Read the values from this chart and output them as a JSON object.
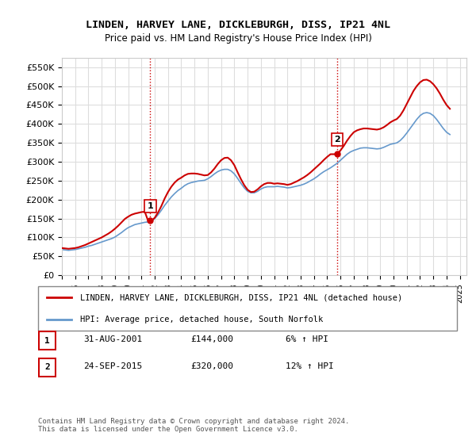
{
  "title": "LINDEN, HARVEY LANE, DICKLEBURGH, DISS, IP21 4NL",
  "subtitle": "Price paid vs. HM Land Registry's House Price Index (HPI)",
  "ylim": [
    0,
    575000
  ],
  "yticks": [
    0,
    50000,
    100000,
    150000,
    200000,
    250000,
    300000,
    350000,
    400000,
    450000,
    500000,
    550000
  ],
  "xlim_start": 1995.0,
  "xlim_end": 2025.5,
  "background_color": "#ffffff",
  "grid_color": "#dddddd",
  "line1_color": "#cc0000",
  "line2_color": "#6699cc",
  "transaction1_x": 2001.667,
  "transaction1_y": 144000,
  "transaction1_label": "1",
  "transaction2_x": 2015.75,
  "transaction2_y": 320000,
  "transaction2_label": "2",
  "vline_color": "#cc0000",
  "vline_style": ":",
  "legend_line1": "LINDEN, HARVEY LANE, DICKLEBURGH, DISS, IP21 4NL (detached house)",
  "legend_line2": "HPI: Average price, detached house, South Norfolk",
  "table_rows": [
    {
      "num": "1",
      "date": "31-AUG-2001",
      "price": "£144,000",
      "hpi": "6% ↑ HPI"
    },
    {
      "num": "2",
      "date": "24-SEP-2015",
      "price": "£320,000",
      "hpi": "12% ↑ HPI"
    }
  ],
  "footnote": "Contains HM Land Registry data © Crown copyright and database right 2024.\nThis data is licensed under the Open Government Licence v3.0.",
  "hpi_data_x": [
    1995.0,
    1995.25,
    1995.5,
    1995.75,
    1996.0,
    1996.25,
    1996.5,
    1996.75,
    1997.0,
    1997.25,
    1997.5,
    1997.75,
    1998.0,
    1998.25,
    1998.5,
    1998.75,
    1999.0,
    1999.25,
    1999.5,
    1999.75,
    2000.0,
    2000.25,
    2000.5,
    2000.75,
    2001.0,
    2001.25,
    2001.5,
    2001.75,
    2002.0,
    2002.25,
    2002.5,
    2002.75,
    2003.0,
    2003.25,
    2003.5,
    2003.75,
    2004.0,
    2004.25,
    2004.5,
    2004.75,
    2005.0,
    2005.25,
    2005.5,
    2005.75,
    2006.0,
    2006.25,
    2006.5,
    2006.75,
    2007.0,
    2007.25,
    2007.5,
    2007.75,
    2008.0,
    2008.25,
    2008.5,
    2008.75,
    2009.0,
    2009.25,
    2009.5,
    2009.75,
    2010.0,
    2010.25,
    2010.5,
    2010.75,
    2011.0,
    2011.25,
    2011.5,
    2011.75,
    2012.0,
    2012.25,
    2012.5,
    2012.75,
    2013.0,
    2013.25,
    2013.5,
    2013.75,
    2014.0,
    2014.25,
    2014.5,
    2014.75,
    2015.0,
    2015.25,
    2015.5,
    2015.75,
    2016.0,
    2016.25,
    2016.5,
    2016.75,
    2017.0,
    2017.25,
    2017.5,
    2017.75,
    2018.0,
    2018.25,
    2018.5,
    2018.75,
    2019.0,
    2019.25,
    2019.5,
    2019.75,
    2020.0,
    2020.25,
    2020.5,
    2020.75,
    2021.0,
    2021.25,
    2021.5,
    2021.75,
    2022.0,
    2022.25,
    2022.5,
    2022.75,
    2023.0,
    2023.25,
    2023.5,
    2023.75,
    2024.0,
    2024.25
  ],
  "hpi_data_y": [
    68000,
    67000,
    66000,
    67000,
    68000,
    70000,
    72000,
    74000,
    77000,
    79000,
    82000,
    85000,
    88000,
    91000,
    94000,
    97000,
    101000,
    107000,
    113000,
    120000,
    126000,
    130000,
    134000,
    136000,
    138000,
    140000,
    141000,
    143000,
    150000,
    160000,
    172000,
    185000,
    196000,
    207000,
    216000,
    224000,
    230000,
    237000,
    242000,
    245000,
    247000,
    249000,
    250000,
    251000,
    255000,
    261000,
    268000,
    274000,
    278000,
    280000,
    280000,
    276000,
    268000,
    256000,
    243000,
    231000,
    222000,
    218000,
    218000,
    222000,
    228000,
    232000,
    234000,
    234000,
    234000,
    235000,
    234000,
    233000,
    231000,
    232000,
    234000,
    236000,
    238000,
    241000,
    245000,
    250000,
    255000,
    261000,
    268000,
    274000,
    279000,
    284000,
    290000,
    296000,
    304000,
    312000,
    320000,
    326000,
    330000,
    333000,
    336000,
    337000,
    337000,
    336000,
    335000,
    334000,
    335000,
    338000,
    342000,
    346000,
    348000,
    350000,
    356000,
    365000,
    376000,
    388000,
    400000,
    412000,
    422000,
    428000,
    430000,
    428000,
    422000,
    412000,
    400000,
    388000,
    378000,
    372000
  ],
  "price_data_x": [
    1995.0,
    1995.25,
    1995.5,
    1995.75,
    1996.0,
    1996.25,
    1996.5,
    1996.75,
    1997.0,
    1997.25,
    1997.5,
    1997.75,
    1998.0,
    1998.25,
    1998.5,
    1998.75,
    1999.0,
    1999.25,
    1999.5,
    1999.75,
    2000.0,
    2000.25,
    2000.5,
    2000.75,
    2001.0,
    2001.25,
    2001.5,
    2001.75,
    2002.0,
    2002.25,
    2002.5,
    2002.75,
    2003.0,
    2003.25,
    2003.5,
    2003.75,
    2004.0,
    2004.25,
    2004.5,
    2004.75,
    2005.0,
    2005.25,
    2005.5,
    2005.75,
    2006.0,
    2006.25,
    2006.5,
    2006.75,
    2007.0,
    2007.25,
    2007.5,
    2007.75,
    2008.0,
    2008.25,
    2008.5,
    2008.75,
    2009.0,
    2009.25,
    2009.5,
    2009.75,
    2010.0,
    2010.25,
    2010.5,
    2010.75,
    2011.0,
    2011.25,
    2011.5,
    2011.75,
    2012.0,
    2012.25,
    2012.5,
    2012.75,
    2013.0,
    2013.25,
    2013.5,
    2013.75,
    2014.0,
    2014.25,
    2014.5,
    2014.75,
    2015.0,
    2015.25,
    2015.5,
    2015.75,
    2016.0,
    2016.25,
    2016.5,
    2016.75,
    2017.0,
    2017.25,
    2017.5,
    2017.75,
    2018.0,
    2018.25,
    2018.5,
    2018.75,
    2019.0,
    2019.25,
    2019.5,
    2019.75,
    2020.0,
    2020.25,
    2020.5,
    2020.75,
    2021.0,
    2021.25,
    2021.5,
    2021.75,
    2022.0,
    2022.25,
    2022.5,
    2022.75,
    2023.0,
    2023.25,
    2023.5,
    2023.75,
    2024.0,
    2024.25
  ],
  "price_data_y": [
    72000,
    71000,
    70000,
    71000,
    72000,
    74000,
    77000,
    80000,
    84000,
    88000,
    92000,
    96000,
    100000,
    105000,
    110000,
    116000,
    123000,
    131000,
    140000,
    149000,
    155000,
    160000,
    163000,
    165000,
    167000,
    168000,
    144000,
    144000,
    152000,
    166000,
    183000,
    203000,
    220000,
    234000,
    245000,
    253000,
    258000,
    264000,
    268000,
    269000,
    269000,
    268000,
    266000,
    264000,
    265000,
    272000,
    282000,
    294000,
    304000,
    310000,
    311000,
    304000,
    291000,
    272000,
    254000,
    238000,
    226000,
    220000,
    221000,
    227000,
    235000,
    241000,
    244000,
    244000,
    242000,
    243000,
    242000,
    241000,
    239000,
    241000,
    245000,
    249000,
    254000,
    259000,
    265000,
    272000,
    280000,
    288000,
    296000,
    305000,
    313000,
    320000,
    320000,
    320000,
    330000,
    342000,
    356000,
    368000,
    378000,
    383000,
    386000,
    388000,
    388000,
    387000,
    386000,
    385000,
    387000,
    391000,
    397000,
    404000,
    409000,
    413000,
    422000,
    436000,
    453000,
    470000,
    487000,
    500000,
    510000,
    516000,
    517000,
    513000,
    505000,
    494000,
    480000,
    464000,
    450000,
    440000
  ]
}
